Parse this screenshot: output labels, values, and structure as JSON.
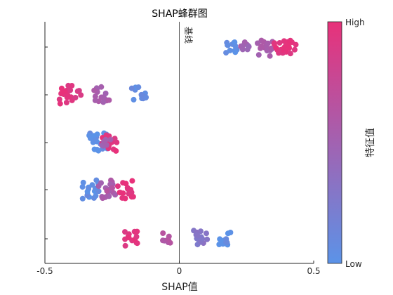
{
  "chart_data": {
    "type": "scatter",
    "title": "SHAP蜂群图",
    "xlabel": "SHAP值",
    "ylabel": "",
    "xlim": [
      -0.5,
      0.5
    ],
    "xticks": [
      -0.5,
      0,
      0.5
    ],
    "xtick_labels": [
      "-0.5",
      "0",
      "0.5"
    ],
    "baseline": {
      "x": 0,
      "label": "基线"
    },
    "colorbar": {
      "label": "特征值",
      "high_label": "High",
      "low_label": "Low",
      "high_color": "#e8317a",
      "low_color": "#5b93e8"
    },
    "rows": [
      {
        "clusters": [
          {
            "x": 0.19,
            "feature_value": 0.05,
            "n": 12
          },
          {
            "x": 0.24,
            "feature_value": 0.5,
            "n": 8
          },
          {
            "x": 0.32,
            "feature_value": 0.55,
            "n": 16
          },
          {
            "x": 0.38,
            "feature_value": 0.95,
            "n": 14
          },
          {
            "x": 0.42,
            "feature_value": 0.95,
            "n": 10
          }
        ]
      },
      {
        "clusters": [
          {
            "x": -0.43,
            "feature_value": 0.95,
            "n": 18
          },
          {
            "x": -0.38,
            "feature_value": 0.85,
            "n": 4
          },
          {
            "x": -0.29,
            "feature_value": 0.55,
            "n": 16
          },
          {
            "x": -0.15,
            "feature_value": 0.05,
            "n": 14
          }
        ]
      },
      {
        "clusters": [
          {
            "x": -0.3,
            "feature_value": 0.05,
            "n": 22
          },
          {
            "x": -0.26,
            "feature_value": 0.95,
            "n": 16
          },
          {
            "x": -0.27,
            "feature_value": 0.5,
            "n": 6
          }
        ]
      },
      {
        "clusters": [
          {
            "x": -0.33,
            "feature_value": 0.05,
            "n": 18
          },
          {
            "x": -0.27,
            "feature_value": 0.55,
            "n": 18
          },
          {
            "x": -0.2,
            "feature_value": 0.95,
            "n": 16
          },
          {
            "x": -0.26,
            "feature_value": 0.6,
            "n": 2
          }
        ]
      },
      {
        "clusters": [
          {
            "x": -0.18,
            "feature_value": 0.95,
            "n": 14
          },
          {
            "x": -0.05,
            "feature_value": 0.6,
            "n": 8
          },
          {
            "x": 0.08,
            "feature_value": 0.3,
            "n": 14
          },
          {
            "x": 0.17,
            "feature_value": 0.05,
            "n": 12
          }
        ]
      }
    ]
  }
}
